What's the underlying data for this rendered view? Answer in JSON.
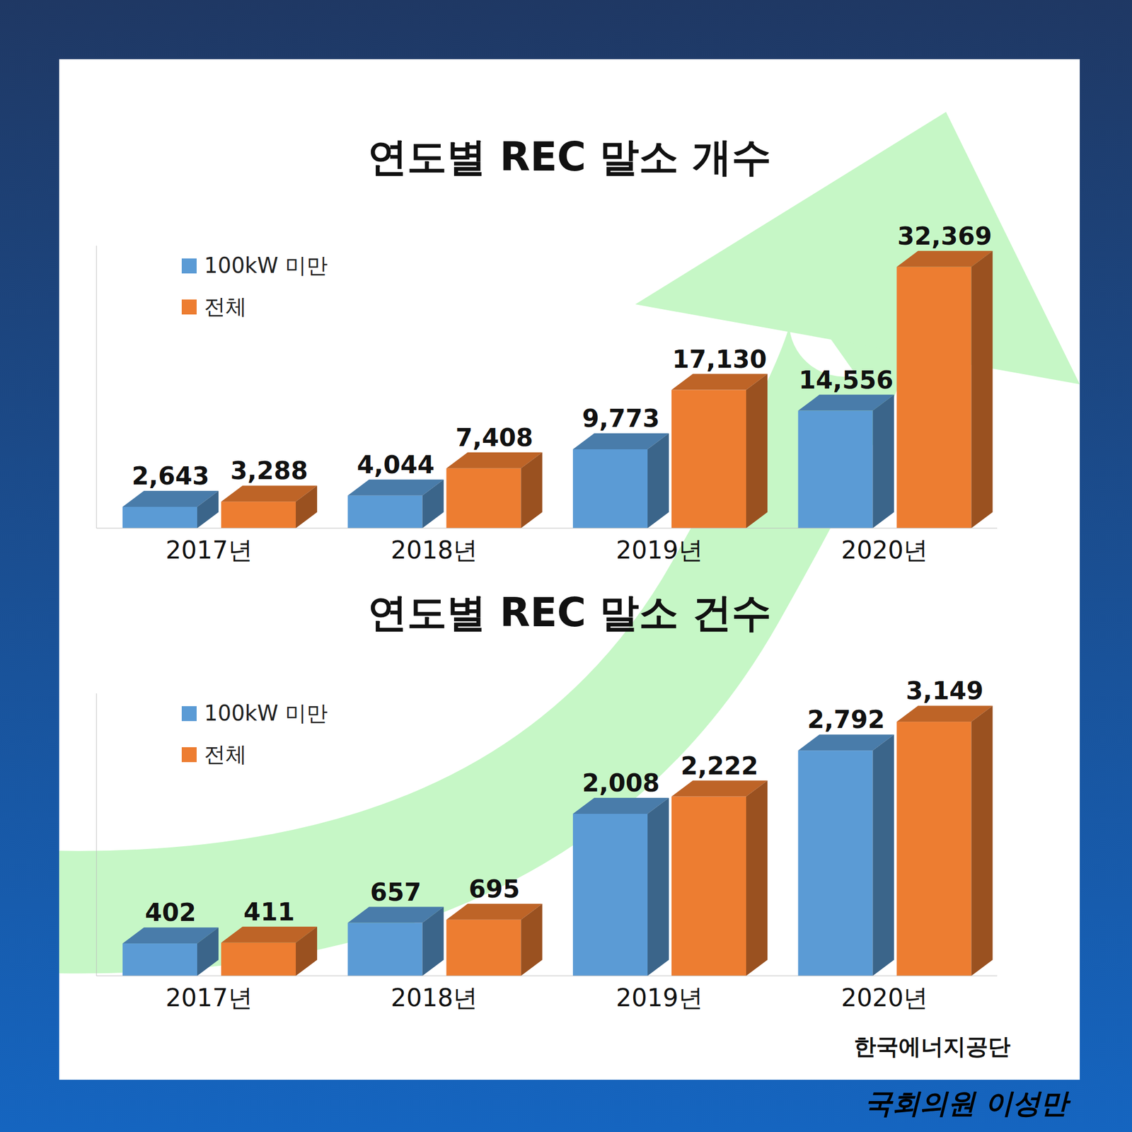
{
  "chart_data": [
    {
      "type": "bar",
      "title": "연도별 REC 말소 개수",
      "categories": [
        "2017년",
        "2018년",
        "2019년",
        "2020년"
      ],
      "series": [
        {
          "name": "100kW 미만",
          "color": "#5b9bd5",
          "values": [
            2643,
            4044,
            9773,
            14556
          ],
          "value_labels": [
            "2,643",
            "4,044",
            "9,773",
            "14,556"
          ]
        },
        {
          "name": "전체",
          "color": "#ed7d31",
          "values": [
            3288,
            7408,
            17130,
            32369
          ],
          "value_labels": [
            "3,288",
            "7,408",
            "17,130",
            "32,369"
          ]
        }
      ],
      "ylim": [
        0,
        35000
      ],
      "grid": false,
      "legend": "top-left",
      "data_labels": true,
      "tick_labels": "x"
    },
    {
      "type": "bar",
      "title": "연도별 REC 말소 건수",
      "categories": [
        "2017년",
        "2018년",
        "2019년",
        "2020년"
      ],
      "series": [
        {
          "name": "100kW 미만",
          "color": "#5b9bd5",
          "values": [
            402,
            657,
            2008,
            2792
          ],
          "value_labels": [
            "402",
            "657",
            "2,008",
            "2,792"
          ]
        },
        {
          "name": "전체",
          "color": "#ed7d31",
          "values": [
            411,
            695,
            2222,
            3149
          ],
          "value_labels": [
            "411",
            "695",
            "2,222",
            "3,149"
          ]
        }
      ],
      "ylim": [
        0,
        3500
      ],
      "grid": false,
      "legend": "top-left",
      "data_labels": true,
      "tick_labels": "x",
      "annotations": [
        "한국에너지공단",
        "국회의원 이성만"
      ]
    }
  ]
}
